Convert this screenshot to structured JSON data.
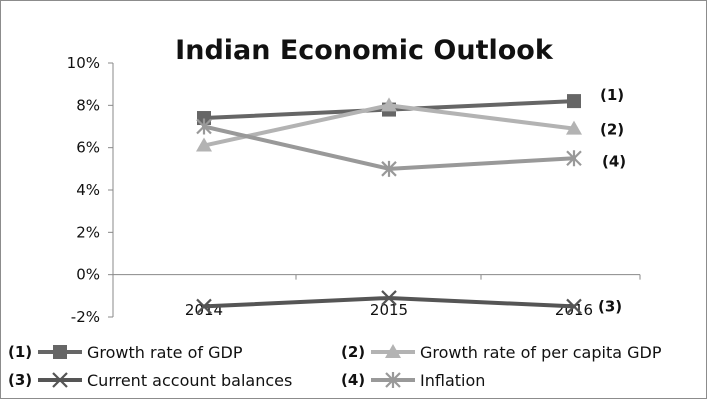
{
  "chart_data": {
    "type": "line",
    "title": "Indian Economic Outlook",
    "categories": [
      "2014",
      "2015",
      "2016"
    ],
    "y_ticks": [
      "10%",
      "8%",
      "6%",
      "4%",
      "2%",
      "0%",
      "-2%"
    ],
    "ylim": [
      -2,
      10
    ],
    "grid": false,
    "legend_position": "bottom",
    "series": [
      {
        "number": "(1)",
        "name": "Growth rate of GDP",
        "values": [
          7.4,
          7.8,
          8.2
        ],
        "marker": "square",
        "color": "#666666"
      },
      {
        "number": "(2)",
        "name": "Growth rate of per capita GDP",
        "values": [
          6.1,
          8.0,
          6.9
        ],
        "marker": "triangle",
        "color": "#b3b3b3"
      },
      {
        "number": "(3)",
        "name": "Current account balances",
        "values": [
          -1.5,
          -1.1,
          -1.5
        ],
        "marker": "x",
        "color": "#555555"
      },
      {
        "number": "(4)",
        "name": "Inflation",
        "values": [
          7.0,
          5.0,
          5.5
        ],
        "marker": "star",
        "color": "#999999"
      }
    ]
  }
}
